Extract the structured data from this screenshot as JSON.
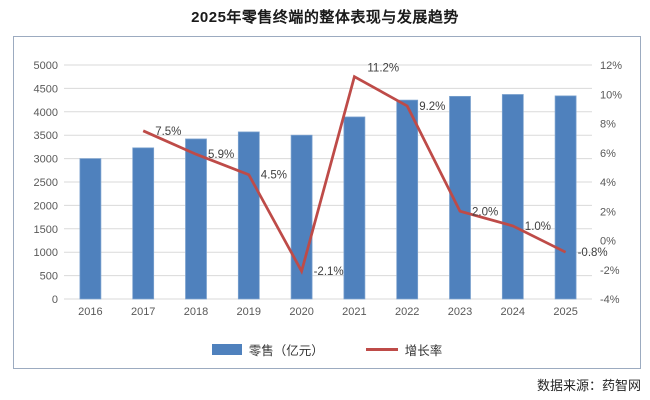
{
  "title": "2025年零售终端的整体表现与发展趋势",
  "source_note": "数据来源：药智网",
  "colors": {
    "bar": "#4f81bd",
    "bar_edge": "#7da3cf",
    "line": "#be4b48",
    "grid": "#dadada",
    "axis_text": "#595959",
    "data_label": "#404040",
    "chart_border": "#9cabc0"
  },
  "legend": {
    "bar_label": "零售（亿元）",
    "line_label": "增长率"
  },
  "chart_data": {
    "type": "bar",
    "subtype": "combo-bar-line",
    "title": "2025年零售终端的整体表现与发展趋势",
    "categories": [
      "2016",
      "2017",
      "2018",
      "2019",
      "2020",
      "2021",
      "2022",
      "2023",
      "2024",
      "2025"
    ],
    "series": [
      {
        "name": "零售（亿元）",
        "kind": "bar",
        "axis": "left",
        "values": [
          3000,
          3230,
          3420,
          3570,
          3500,
          3890,
          4250,
          4330,
          4370,
          4340
        ]
      },
      {
        "name": "增长率",
        "kind": "line",
        "axis": "right",
        "values": [
          null,
          7.5,
          5.9,
          4.5,
          -2.1,
          11.2,
          9.2,
          2.0,
          1.0,
          -0.8
        ],
        "point_labels": [
          "",
          "7.5%",
          "5.9%",
          "4.5%",
          "-2.1%",
          "11.2%",
          "9.2%",
          "2.0%",
          "1.0%",
          "-0.8%"
        ]
      }
    ],
    "left_axis": {
      "min": 0,
      "max": 5000,
      "step": 500,
      "ticks": [
        "5000",
        "4500",
        "4000",
        "3500",
        "3000",
        "2500",
        "2000",
        "1500",
        "1000",
        "500",
        "0"
      ]
    },
    "right_axis": {
      "min": -4,
      "max": 12,
      "step": 2,
      "ticks": [
        "12%",
        "10%",
        "8%",
        "6%",
        "4%",
        "2%",
        "0%",
        "-2%",
        "-4%"
      ]
    },
    "grid": true,
    "legend_position": "bottom"
  }
}
